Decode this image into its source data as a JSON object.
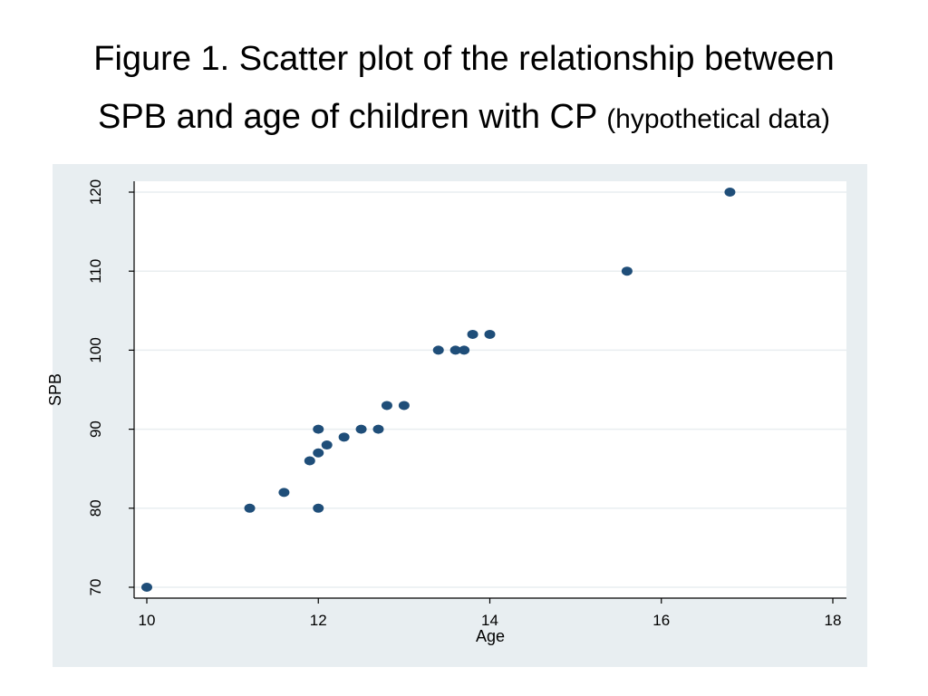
{
  "title": {
    "line1": "Figure 1. Scatter plot of the relationship between",
    "line2_main": "SPB and age of children with CP",
    "line2_note": "(hypothetical data)"
  },
  "colors": {
    "frame_bg": "#e8eef1",
    "plot_bg": "#ffffff",
    "grid": "#e9eef0",
    "marker": "#1f4e79",
    "axis": "#000000"
  },
  "chart_data": {
    "type": "scatter",
    "xlabel": "Age",
    "ylabel": "SPB",
    "xlim": [
      10,
      18
    ],
    "ylim": [
      70,
      120
    ],
    "xticks": [
      10,
      12,
      14,
      16,
      18
    ],
    "yticks": [
      70,
      80,
      90,
      100,
      110,
      120
    ],
    "grid": true,
    "points": [
      {
        "x": 10.0,
        "y": 70
      },
      {
        "x": 11.2,
        "y": 80
      },
      {
        "x": 11.6,
        "y": 82
      },
      {
        "x": 11.9,
        "y": 86
      },
      {
        "x": 12.0,
        "y": 80
      },
      {
        "x": 12.0,
        "y": 87
      },
      {
        "x": 12.0,
        "y": 90
      },
      {
        "x": 12.1,
        "y": 88
      },
      {
        "x": 12.3,
        "y": 89
      },
      {
        "x": 12.5,
        "y": 90
      },
      {
        "x": 12.7,
        "y": 90
      },
      {
        "x": 12.8,
        "y": 93
      },
      {
        "x": 13.0,
        "y": 93
      },
      {
        "x": 13.4,
        "y": 100
      },
      {
        "x": 13.6,
        "y": 100
      },
      {
        "x": 13.7,
        "y": 100
      },
      {
        "x": 13.8,
        "y": 102
      },
      {
        "x": 14.0,
        "y": 102
      },
      {
        "x": 15.6,
        "y": 110
      },
      {
        "x": 16.8,
        "y": 120
      }
    ]
  }
}
